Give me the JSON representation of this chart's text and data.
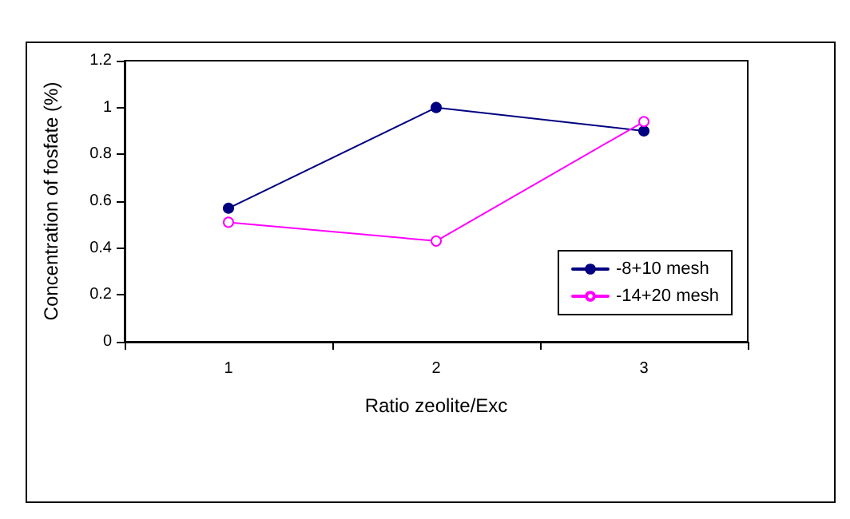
{
  "chart_data": {
    "type": "line",
    "xlabel": "Ratio zeolite/Exc",
    "ylabel": "Concentration of fosfate (%)",
    "categories": [
      "1",
      "2",
      "3"
    ],
    "series": [
      {
        "name": "-8+10 mesh",
        "color": "#000080",
        "values": [
          0.57,
          1.0,
          0.9
        ]
      },
      {
        "name": "-14+20 mesh",
        "color": "#ff00ff",
        "values": [
          0.51,
          0.43,
          0.94
        ]
      }
    ],
    "ylim": [
      0,
      1.2
    ],
    "yticks": [
      0,
      0.2,
      0.4,
      0.6,
      0.8,
      1,
      1.2
    ],
    "grid": false,
    "legend": "right",
    "marker": "circle",
    "line_style": "solid"
  }
}
